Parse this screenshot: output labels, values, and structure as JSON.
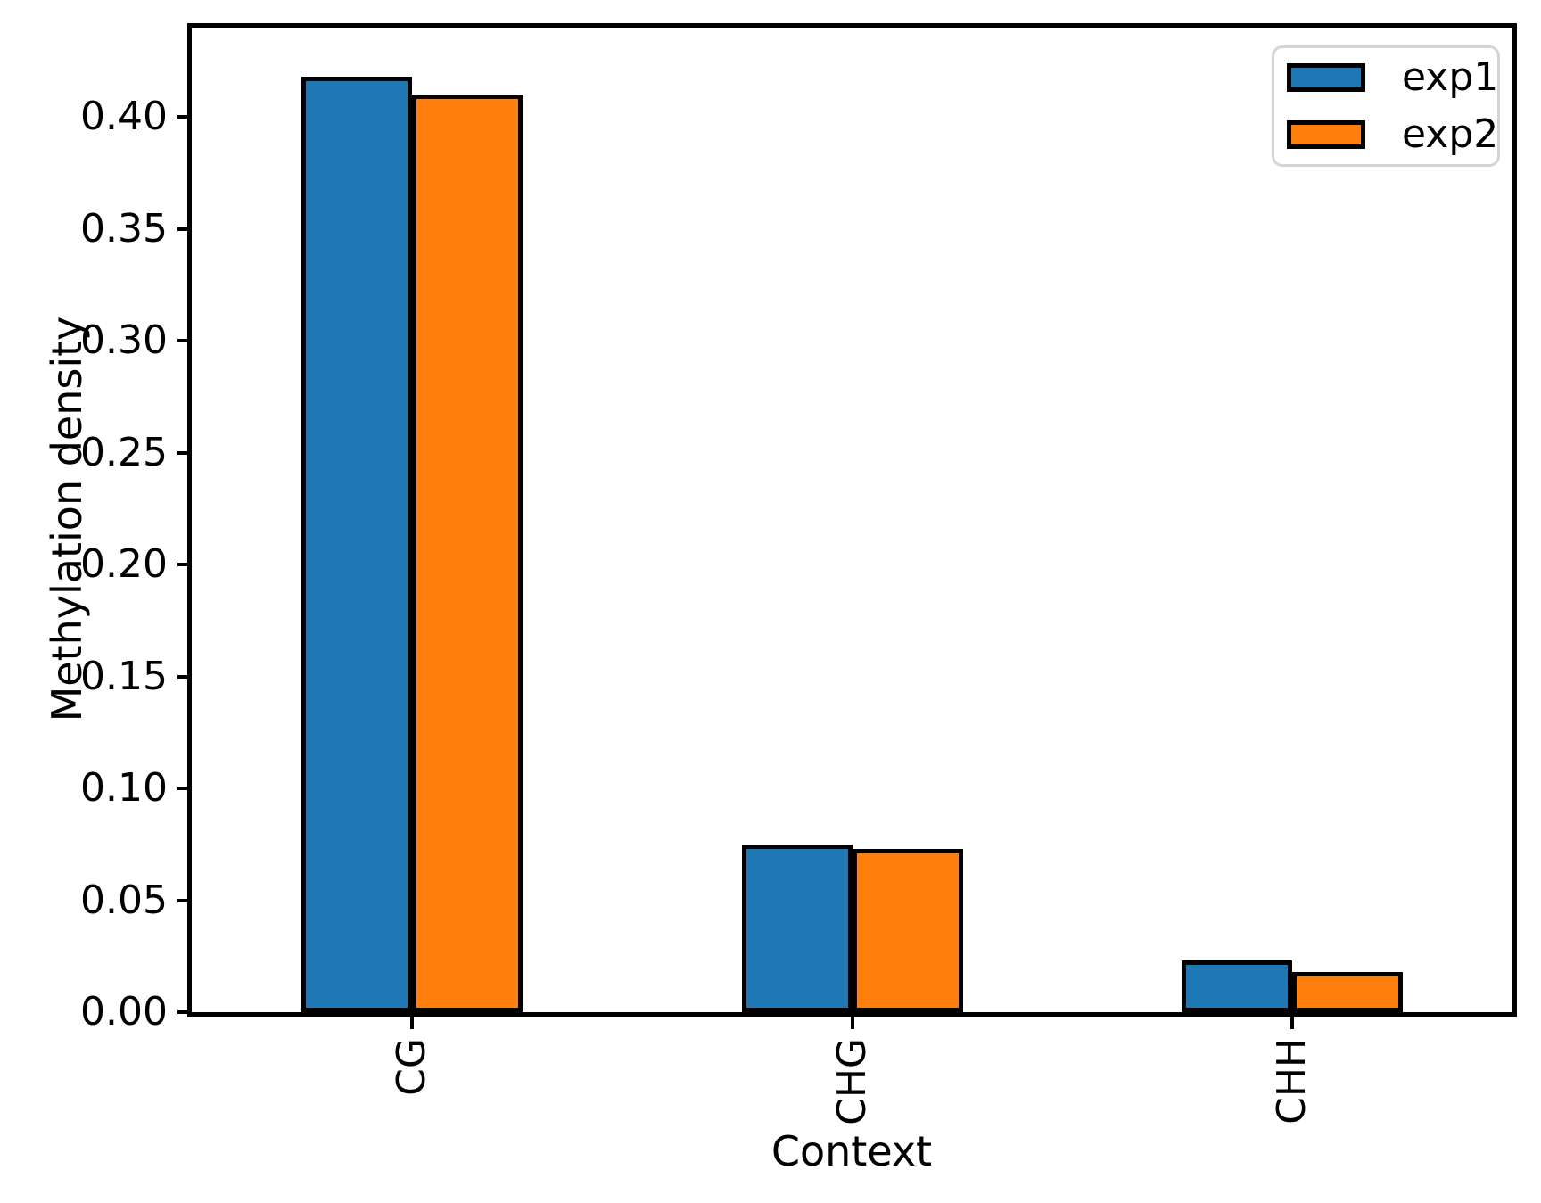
{
  "chart_data": {
    "type": "bar",
    "title": "",
    "xlabel": "Context",
    "ylabel": "Methylation density",
    "categories": [
      "CG",
      "CHG",
      "CHH"
    ],
    "series": [
      {
        "name": "exp1",
        "color": "#1f77b4",
        "values": [
          0.418,
          0.075,
          0.023
        ]
      },
      {
        "name": "exp2",
        "color": "#ff7f0e",
        "values": [
          0.41,
          0.073,
          0.018
        ]
      }
    ],
    "bar_edge_color": "#000000",
    "spine_color": "#000000",
    "ylim": [
      0,
      0.44
    ],
    "yticks": [
      0.0,
      0.05,
      0.1,
      0.15,
      0.2,
      0.25,
      0.3,
      0.35,
      0.4
    ],
    "ytick_labels": [
      "0.00",
      "0.05",
      "0.10",
      "0.15",
      "0.20",
      "0.25",
      "0.30",
      "0.35",
      "0.40"
    ],
    "xtick_rotation": 90,
    "grid": false,
    "legend_position": "upper right",
    "background_color": "#ffffff"
  }
}
